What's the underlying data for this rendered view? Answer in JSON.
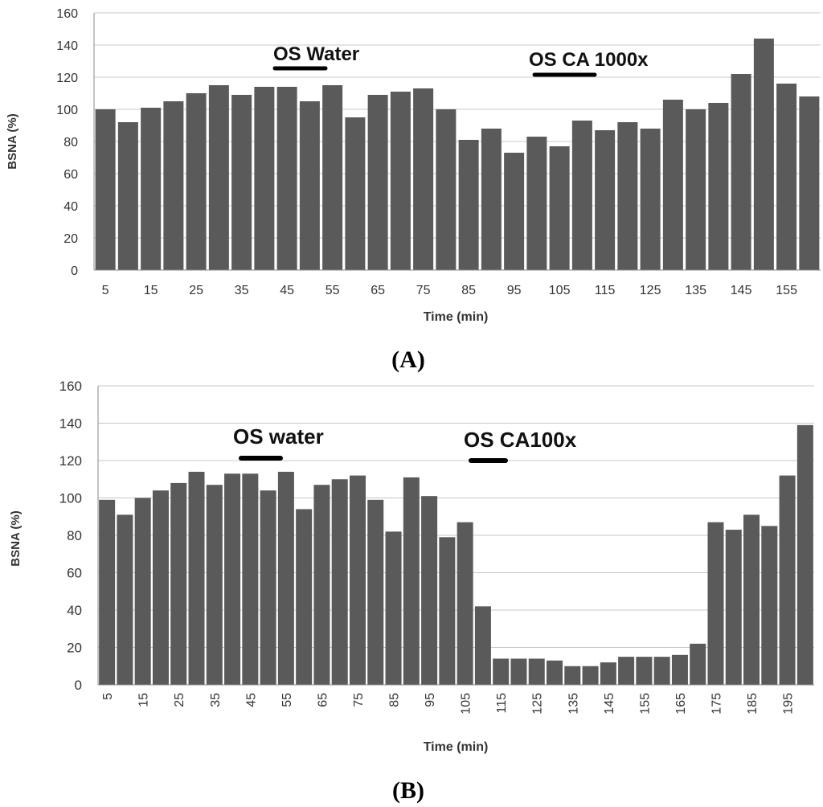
{
  "bar_color": "#5a5a5a",
  "gridline_color": "#c8c8c8",
  "annotation_color": "#000000",
  "chart_data": [
    {
      "panel": "(A)",
      "type": "bar",
      "xlabel": "Time (min)",
      "ylabel": "BSNA (%)",
      "ylim": [
        0,
        160
      ],
      "yticks": [
        0,
        20,
        40,
        60,
        80,
        100,
        120,
        140,
        160
      ],
      "categories": [
        5,
        10,
        15,
        20,
        25,
        30,
        35,
        40,
        45,
        50,
        55,
        60,
        65,
        70,
        75,
        80,
        85,
        90,
        95,
        100,
        105,
        110,
        115,
        120,
        125,
        130,
        135,
        140,
        145,
        150,
        155,
        160
      ],
      "values": [
        100,
        92,
        101,
        105,
        110,
        115,
        109,
        114,
        114,
        105,
        115,
        95,
        109,
        111,
        113,
        100,
        81,
        88,
        73,
        83,
        77,
        93,
        87,
        92,
        88,
        106,
        100,
        104,
        122,
        144,
        116,
        108
      ],
      "xtick_labels": [
        "5",
        "15",
        "25",
        "35",
        "45",
        "55",
        "65",
        "75",
        "85",
        "95",
        "105",
        "115",
        "125",
        "135",
        "145",
        "155"
      ],
      "annotations": [
        {
          "text": "OS Water",
          "x_start": 45,
          "x_end": 55
        },
        {
          "text": "OS CA  1000x",
          "x_start": 100,
          "x_end": 110
        }
      ]
    },
    {
      "panel": "(B)",
      "type": "bar",
      "xlabel": "Time (min)",
      "ylabel": "BSNA (%)",
      "ylim": [
        0,
        160
      ],
      "yticks": [
        0,
        20,
        40,
        60,
        80,
        100,
        120,
        140,
        160
      ],
      "categories": [
        5,
        10,
        15,
        20,
        25,
        30,
        35,
        40,
        45,
        50,
        55,
        60,
        65,
        70,
        75,
        80,
        85,
        90,
        95,
        100,
        105,
        110,
        115,
        120,
        125,
        130,
        135,
        140,
        145,
        150,
        155,
        160,
        165,
        170,
        175,
        180,
        185,
        190,
        195,
        200
      ],
      "values": [
        99,
        91,
        100,
        104,
        108,
        114,
        107,
        113,
        113,
        104,
        114,
        94,
        107,
        110,
        112,
        99,
        82,
        111,
        101,
        79,
        87,
        42,
        14,
        14,
        14,
        13,
        10,
        10,
        12,
        15,
        15,
        15,
        16,
        22,
        87,
        83,
        91,
        85,
        112,
        139
      ],
      "xtick_labels": [
        "5",
        "15",
        "25",
        "35",
        "45",
        "55",
        "65",
        "75",
        "85",
        "95",
        "105",
        "115",
        "125",
        "135",
        "145",
        "155",
        "165",
        "175",
        "185",
        "195"
      ],
      "annotations": [
        {
          "text": "OS water",
          "x_start": 45,
          "x_end": 50
        },
        {
          "text": "OS CA100x",
          "x_start": 115,
          "x_end": 120
        }
      ]
    }
  ]
}
